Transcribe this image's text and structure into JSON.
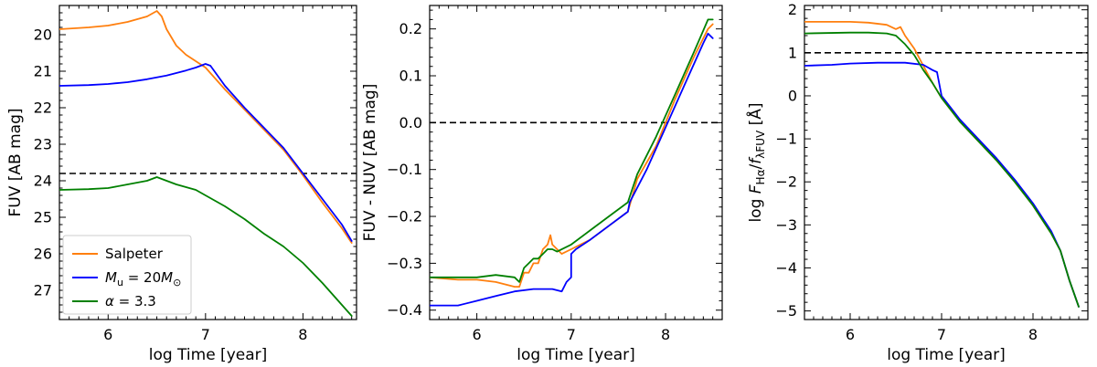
{
  "series_colors": {
    "salpeter": "#ff7f0e",
    "mu20": "#0000ff",
    "alpha33": "#008000"
  },
  "legend": {
    "placement": "lower-left",
    "entries": [
      {
        "key": "salpeter",
        "label": "Salpeter",
        "label_html": "Salpeter"
      },
      {
        "key": "mu20",
        "label": "M_u = 20M_⊙",
        "label_html": "<tspan font-style='italic'>M</tspan><tspan font-size='11' dy='4'>u</tspan><tspan dy='-4'> = 20</tspan><tspan font-style='italic'>M</tspan><tspan font-size='11' dy='4'>⊙</tspan>"
      },
      {
        "key": "alpha33",
        "label": "α = 3.3",
        "label_html": "<tspan font-style='italic'>α</tspan> = 3.3"
      }
    ]
  },
  "chart_data": [
    {
      "type": "line",
      "xlabel": "log Time [year]",
      "ylabel": "FUV [AB mag]",
      "xlim": [
        5.5,
        8.55
      ],
      "ylim": [
        27.8,
        19.2
      ],
      "y_inverted": true,
      "xticks": [
        6,
        7,
        8
      ],
      "yticks": [
        20,
        21,
        22,
        23,
        24,
        25,
        26,
        27
      ],
      "reference_line": {
        "orientation": "horizontal",
        "y": 23.8,
        "style": "dashed"
      },
      "series": [
        {
          "key": "salpeter",
          "x": [
            5.5,
            5.8,
            6.0,
            6.2,
            6.4,
            6.5,
            6.55,
            6.6,
            6.7,
            6.8,
            7.0,
            7.2,
            7.4,
            7.6,
            7.8,
            8.0,
            8.2,
            8.4,
            8.5
          ],
          "y": [
            19.85,
            19.8,
            19.75,
            19.65,
            19.5,
            19.35,
            19.5,
            19.85,
            20.3,
            20.55,
            20.9,
            21.5,
            22.05,
            22.6,
            23.15,
            23.85,
            24.6,
            25.3,
            25.7
          ]
        },
        {
          "key": "mu20",
          "x": [
            5.5,
            5.8,
            6.0,
            6.2,
            6.4,
            6.6,
            6.8,
            6.9,
            7.0,
            7.05,
            7.2,
            7.4,
            7.6,
            7.8,
            8.0,
            8.2,
            8.4,
            8.5
          ],
          "y": [
            21.4,
            21.38,
            21.35,
            21.3,
            21.22,
            21.12,
            20.98,
            20.9,
            20.8,
            20.85,
            21.4,
            22.0,
            22.55,
            23.1,
            23.8,
            24.5,
            25.2,
            25.65
          ]
        },
        {
          "key": "alpha33",
          "x": [
            5.5,
            5.8,
            6.0,
            6.2,
            6.4,
            6.5,
            6.6,
            6.7,
            6.9,
            7.0,
            7.2,
            7.4,
            7.6,
            7.8,
            8.0,
            8.2,
            8.4,
            8.5
          ],
          "y": [
            24.25,
            24.23,
            24.2,
            24.1,
            24.0,
            23.9,
            24.0,
            24.1,
            24.25,
            24.4,
            24.7,
            25.05,
            25.45,
            25.8,
            26.25,
            26.8,
            27.4,
            27.7
          ]
        }
      ]
    },
    {
      "type": "line",
      "xlabel": "log Time [year]",
      "ylabel": "FUV - NUV [AB mag]",
      "xlim": [
        5.5,
        8.6
      ],
      "ylim": [
        -0.42,
        0.25
      ],
      "xticks": [
        6,
        7,
        8
      ],
      "yticks": [
        -0.4,
        -0.3,
        -0.2,
        -0.1,
        0.0,
        0.1,
        0.2
      ],
      "ytick_labels": [
        "−0.4",
        "−0.3",
        "−0.2",
        "−0.1",
        "0.0",
        "0.1",
        "0.2"
      ],
      "reference_line": {
        "orientation": "horizontal",
        "y": 0.0,
        "style": "dashed"
      },
      "series": [
        {
          "key": "salpeter",
          "x": [
            5.5,
            5.8,
            6.0,
            6.2,
            6.4,
            6.45,
            6.5,
            6.55,
            6.6,
            6.65,
            6.7,
            6.75,
            6.78,
            6.8,
            6.85,
            6.9,
            7.0,
            7.2,
            7.4,
            7.6,
            7.7,
            7.9,
            8.1,
            8.3,
            8.45,
            8.5
          ],
          "y": [
            -0.33,
            -0.335,
            -0.335,
            -0.34,
            -0.35,
            -0.35,
            -0.32,
            -0.32,
            -0.3,
            -0.3,
            -0.27,
            -0.26,
            -0.24,
            -0.26,
            -0.27,
            -0.28,
            -0.27,
            -0.25,
            -0.22,
            -0.19,
            -0.12,
            -0.05,
            0.05,
            0.14,
            0.2,
            0.21
          ]
        },
        {
          "key": "mu20",
          "x": [
            5.5,
            5.8,
            6.0,
            6.2,
            6.4,
            6.6,
            6.8,
            6.9,
            6.95,
            7.0,
            7.0,
            7.05,
            7.2,
            7.4,
            7.6,
            7.62,
            7.8,
            8.0,
            8.2,
            8.4,
            8.45,
            8.5
          ],
          "y": [
            -0.39,
            -0.39,
            -0.38,
            -0.37,
            -0.36,
            -0.355,
            -0.355,
            -0.36,
            -0.34,
            -0.33,
            -0.28,
            -0.27,
            -0.25,
            -0.22,
            -0.19,
            -0.17,
            -0.1,
            -0.01,
            0.08,
            0.17,
            0.19,
            0.18
          ]
        },
        {
          "key": "alpha33",
          "x": [
            5.5,
            5.8,
            6.0,
            6.2,
            6.4,
            6.45,
            6.5,
            6.55,
            6.6,
            6.65,
            6.7,
            6.75,
            6.8,
            6.85,
            7.0,
            7.2,
            7.4,
            7.6,
            7.7,
            7.9,
            8.1,
            8.3,
            8.45,
            8.5
          ],
          "y": [
            -0.33,
            -0.33,
            -0.33,
            -0.325,
            -0.33,
            -0.34,
            -0.31,
            -0.3,
            -0.29,
            -0.29,
            -0.28,
            -0.27,
            -0.27,
            -0.275,
            -0.26,
            -0.23,
            -0.2,
            -0.17,
            -0.11,
            -0.03,
            0.06,
            0.15,
            0.22,
            0.22
          ]
        }
      ]
    },
    {
      "type": "line",
      "xlabel": "log Time [year]",
      "ylabel": "log F_Hα/f_λFUV [Å]",
      "xlim": [
        5.5,
        8.6
      ],
      "ylim": [
        -5.2,
        2.1
      ],
      "xticks": [
        6,
        7,
        8
      ],
      "yticks": [
        -5,
        -4,
        -3,
        -2,
        -1,
        0,
        1,
        2
      ],
      "ytick_labels": [
        "−5",
        "−4",
        "−3",
        "−2",
        "−1",
        "0",
        "1",
        "2"
      ],
      "reference_line": {
        "orientation": "horizontal",
        "y": 1.0,
        "style": "dashed"
      },
      "series": [
        {
          "key": "salpeter",
          "x": [
            5.5,
            6.0,
            6.2,
            6.4,
            6.5,
            6.55,
            6.6,
            6.7,
            6.8,
            6.9,
            7.0,
            7.2,
            7.4,
            7.6,
            7.8,
            8.0,
            8.2,
            8.3,
            8.4,
            8.5
          ],
          "y": [
            1.72,
            1.72,
            1.7,
            1.65,
            1.55,
            1.6,
            1.4,
            1.1,
            0.7,
            0.3,
            -0.05,
            -0.6,
            -1.05,
            -1.5,
            -2.0,
            -2.55,
            -3.2,
            -3.6,
            -4.3,
            -4.9
          ]
        },
        {
          "key": "mu20",
          "x": [
            5.5,
            5.8,
            6.0,
            6.3,
            6.6,
            6.8,
            6.9,
            6.95,
            7.0,
            7.2,
            7.4,
            7.6,
            7.8,
            8.0,
            8.2,
            8.3,
            8.4,
            8.5
          ],
          "y": [
            0.7,
            0.72,
            0.75,
            0.77,
            0.77,
            0.72,
            0.6,
            0.55,
            0.0,
            -0.55,
            -1.0,
            -1.45,
            -1.95,
            -2.5,
            -3.15,
            -3.6,
            -4.3,
            -4.9
          ]
        },
        {
          "key": "alpha33",
          "x": [
            5.5,
            6.0,
            6.2,
            6.4,
            6.5,
            6.6,
            6.7,
            6.8,
            6.9,
            7.0,
            7.2,
            7.4,
            7.6,
            7.8,
            8.0,
            8.2,
            8.3,
            8.4,
            8.5
          ],
          "y": [
            1.45,
            1.47,
            1.47,
            1.45,
            1.4,
            1.2,
            0.95,
            0.6,
            0.3,
            -0.05,
            -0.6,
            -1.05,
            -1.5,
            -2.0,
            -2.55,
            -3.2,
            -3.6,
            -4.3,
            -4.9
          ]
        }
      ]
    }
  ]
}
